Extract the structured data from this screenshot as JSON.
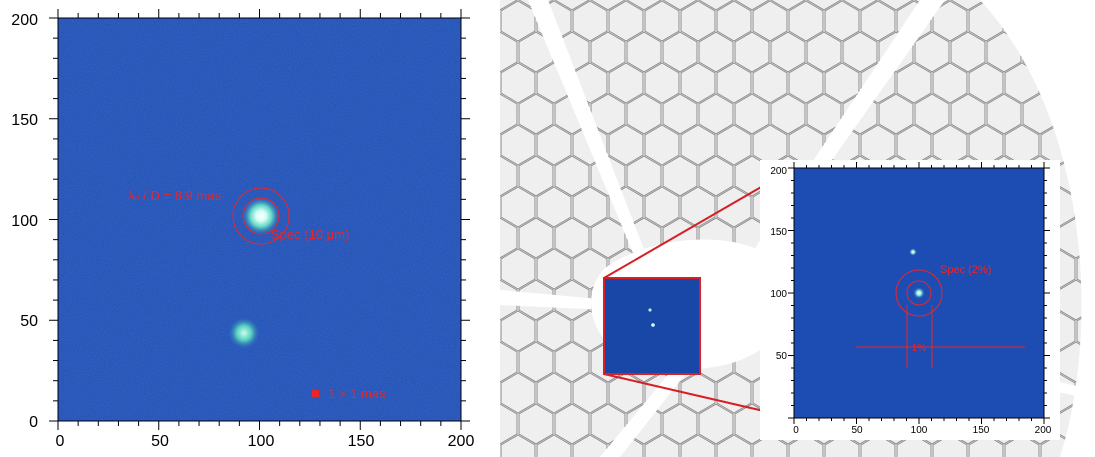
{
  "left_panel": {
    "x_ticks": [
      "0",
      "50",
      "100",
      "150",
      "200"
    ],
    "y_ticks": [
      "0",
      "50",
      "100",
      "150",
      "200"
    ],
    "annotations": {
      "lambda": "λₙ / D = 8.9 mas",
      "spec": "Spec (10 μm)",
      "pixel_scale": "1 × 1 mas"
    }
  },
  "right_panel": {
    "inset": {
      "x_ticks": [
        "0",
        "50",
        "100",
        "150",
        "200"
      ],
      "y_ticks": [
        "50",
        "100",
        "150",
        "200"
      ],
      "annotations": {
        "spec": "Spec (2%)",
        "one_percent": "1%"
      }
    }
  },
  "colors": {
    "image_blue": "#1d4db3",
    "annotation_red": "#e8262a",
    "mirror_gray": "#eeeeee"
  }
}
